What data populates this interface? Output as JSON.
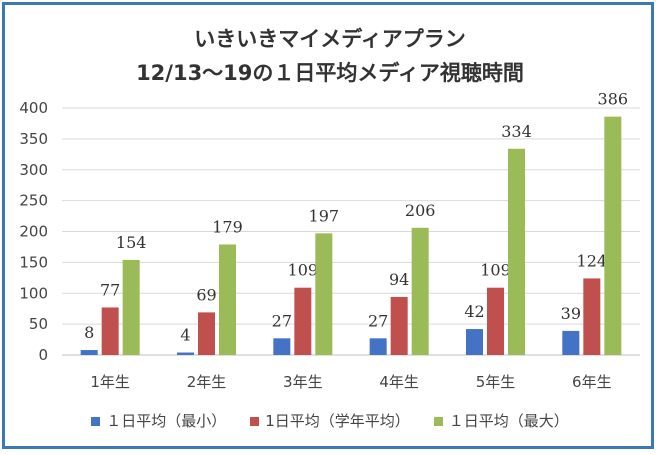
{
  "chart_data": {
    "type": "bar",
    "title_line1": "いきいきマイメディアプラン",
    "title_line2": "12/13〜19の１日平均メディア視聴時間",
    "categories": [
      "1年生",
      "2年生",
      "3年生",
      "4年生",
      "5年生",
      "6年生"
    ],
    "yticks": [
      "0",
      "50",
      "100",
      "150",
      "200",
      "250",
      "300",
      "350",
      "400"
    ],
    "ylim": [
      0,
      400
    ],
    "grid": true,
    "legend_position": "bottom",
    "series": [
      {
        "name": "１日平均（最小）",
        "color": "#4472c4",
        "values": [
          8,
          4,
          27,
          27,
          42,
          39
        ]
      },
      {
        "name": "1日平均（学年平均）",
        "color": "#c0504d",
        "values": [
          77,
          69,
          109,
          94,
          109,
          124
        ]
      },
      {
        "name": "１日平均（最大）",
        "color": "#9bbb59",
        "values": [
          154,
          179,
          197,
          206,
          334,
          386
        ]
      }
    ]
  }
}
